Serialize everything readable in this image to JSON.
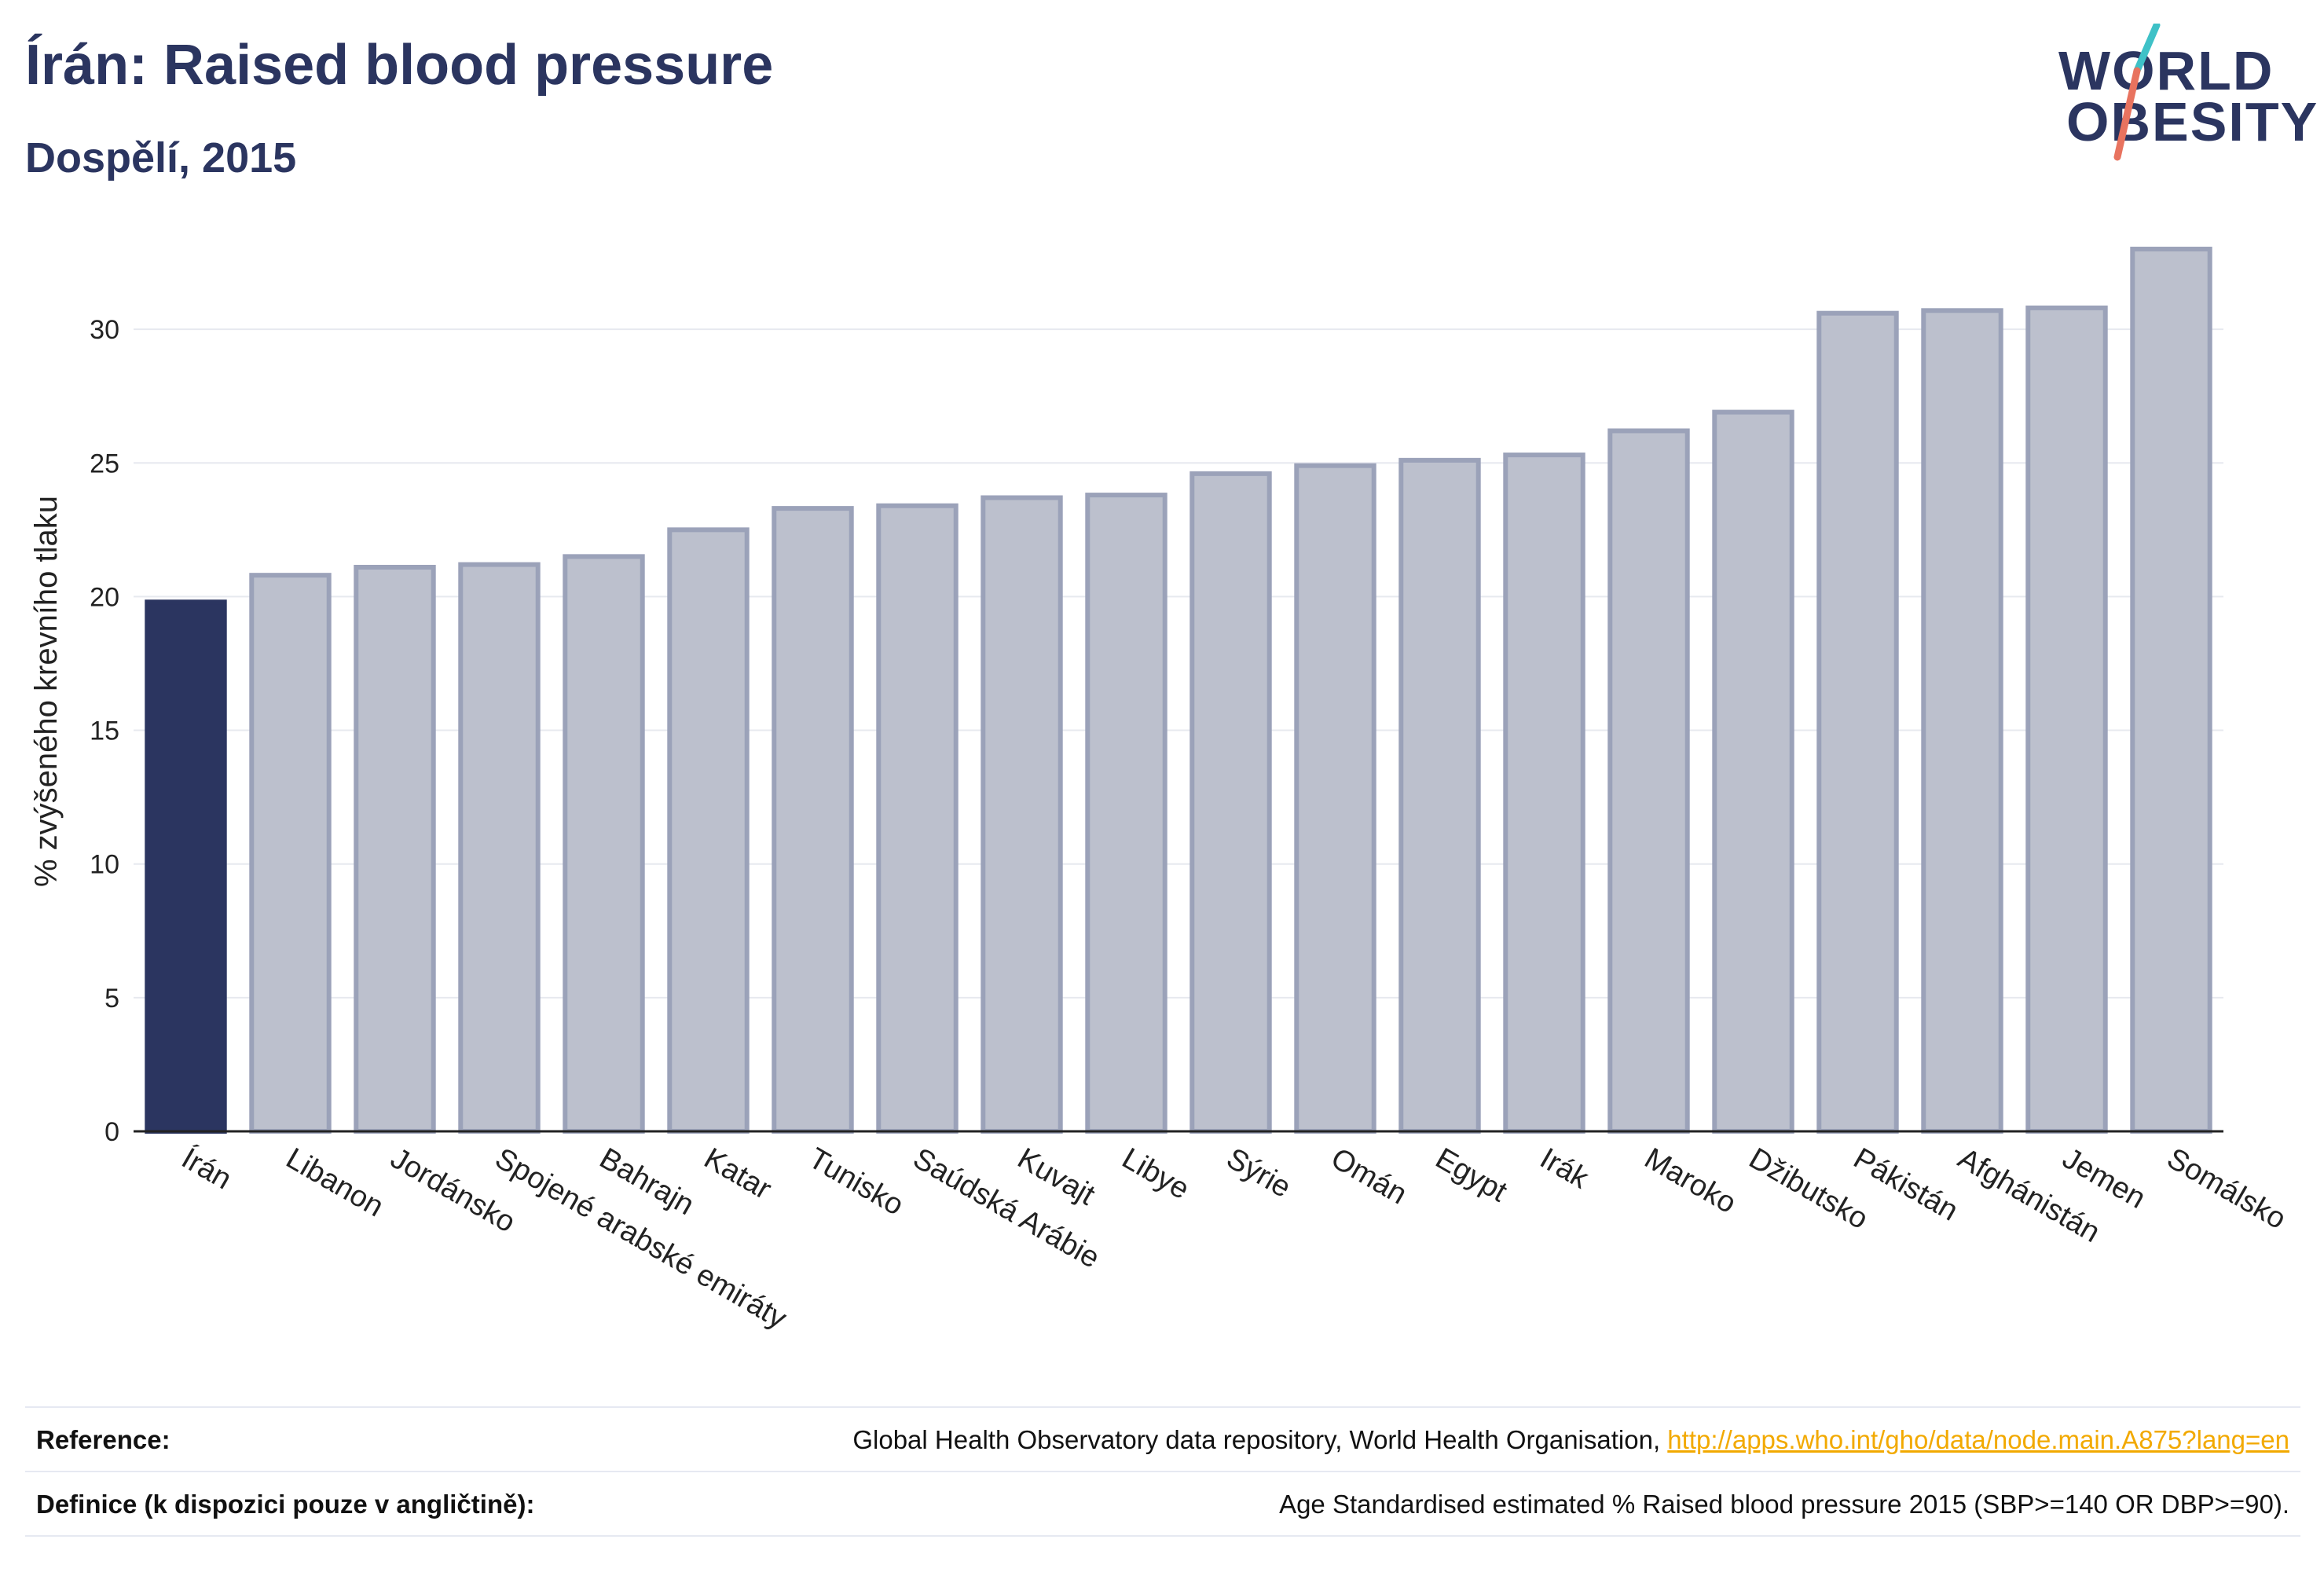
{
  "title": "Írán: Raised blood pressure",
  "subtitle": "Dospělí, 2015",
  "logo": {
    "line1": "WORLD",
    "line2": "OBESITY"
  },
  "colors": {
    "highlight": "#2b3560",
    "bar_fill": "#bcc0cd",
    "bar_stroke": "#9ba2b9",
    "accent_teal": "#3ec1c7",
    "accent_red": "#e8735f",
    "link": "#f2a900"
  },
  "chart_data": {
    "type": "bar",
    "title": "Írán: Raised blood pressure",
    "subtitle": "Dospělí, 2015",
    "ylabel": "% zvýšeného krevního tlaku",
    "xlabel": "",
    "ylim": [
      0,
      33.5
    ],
    "yticks": [
      0,
      5,
      10,
      15,
      20,
      25,
      30
    ],
    "grid": true,
    "highlight_index": 0,
    "categories": [
      "Írán",
      "Libanon",
      "Jordánsko",
      "Spojené arabské emiráty",
      "Bahrajn",
      "Katar",
      "Tunisko",
      "Saúdská Arábie",
      "Kuvajt",
      "Libye",
      "Sýrie",
      "Omán",
      "Egypt",
      "Irák",
      "Maroko",
      "Džibutsko",
      "Pákistán",
      "Afghánistán",
      "Jemen",
      "Somálsko"
    ],
    "values": [
      19.8,
      20.8,
      21.1,
      21.2,
      21.5,
      22.5,
      23.3,
      23.4,
      23.7,
      23.8,
      24.6,
      24.9,
      25.1,
      25.3,
      26.2,
      26.9,
      30.6,
      30.7,
      30.8,
      33.0
    ]
  },
  "footer": {
    "reference_label": "Reference:",
    "reference_text": "Global Health Observatory data repository, World Health Organisation, ",
    "reference_link": "http://apps.who.int/gho/data/node.main.A875?lang=en",
    "definition_label": "Definice (k dispozici pouze v angličtině):",
    "definition_text": "Age Standardised estimated % Raised blood pressure 2015 (SBP>=140 OR DBP>=90)."
  }
}
